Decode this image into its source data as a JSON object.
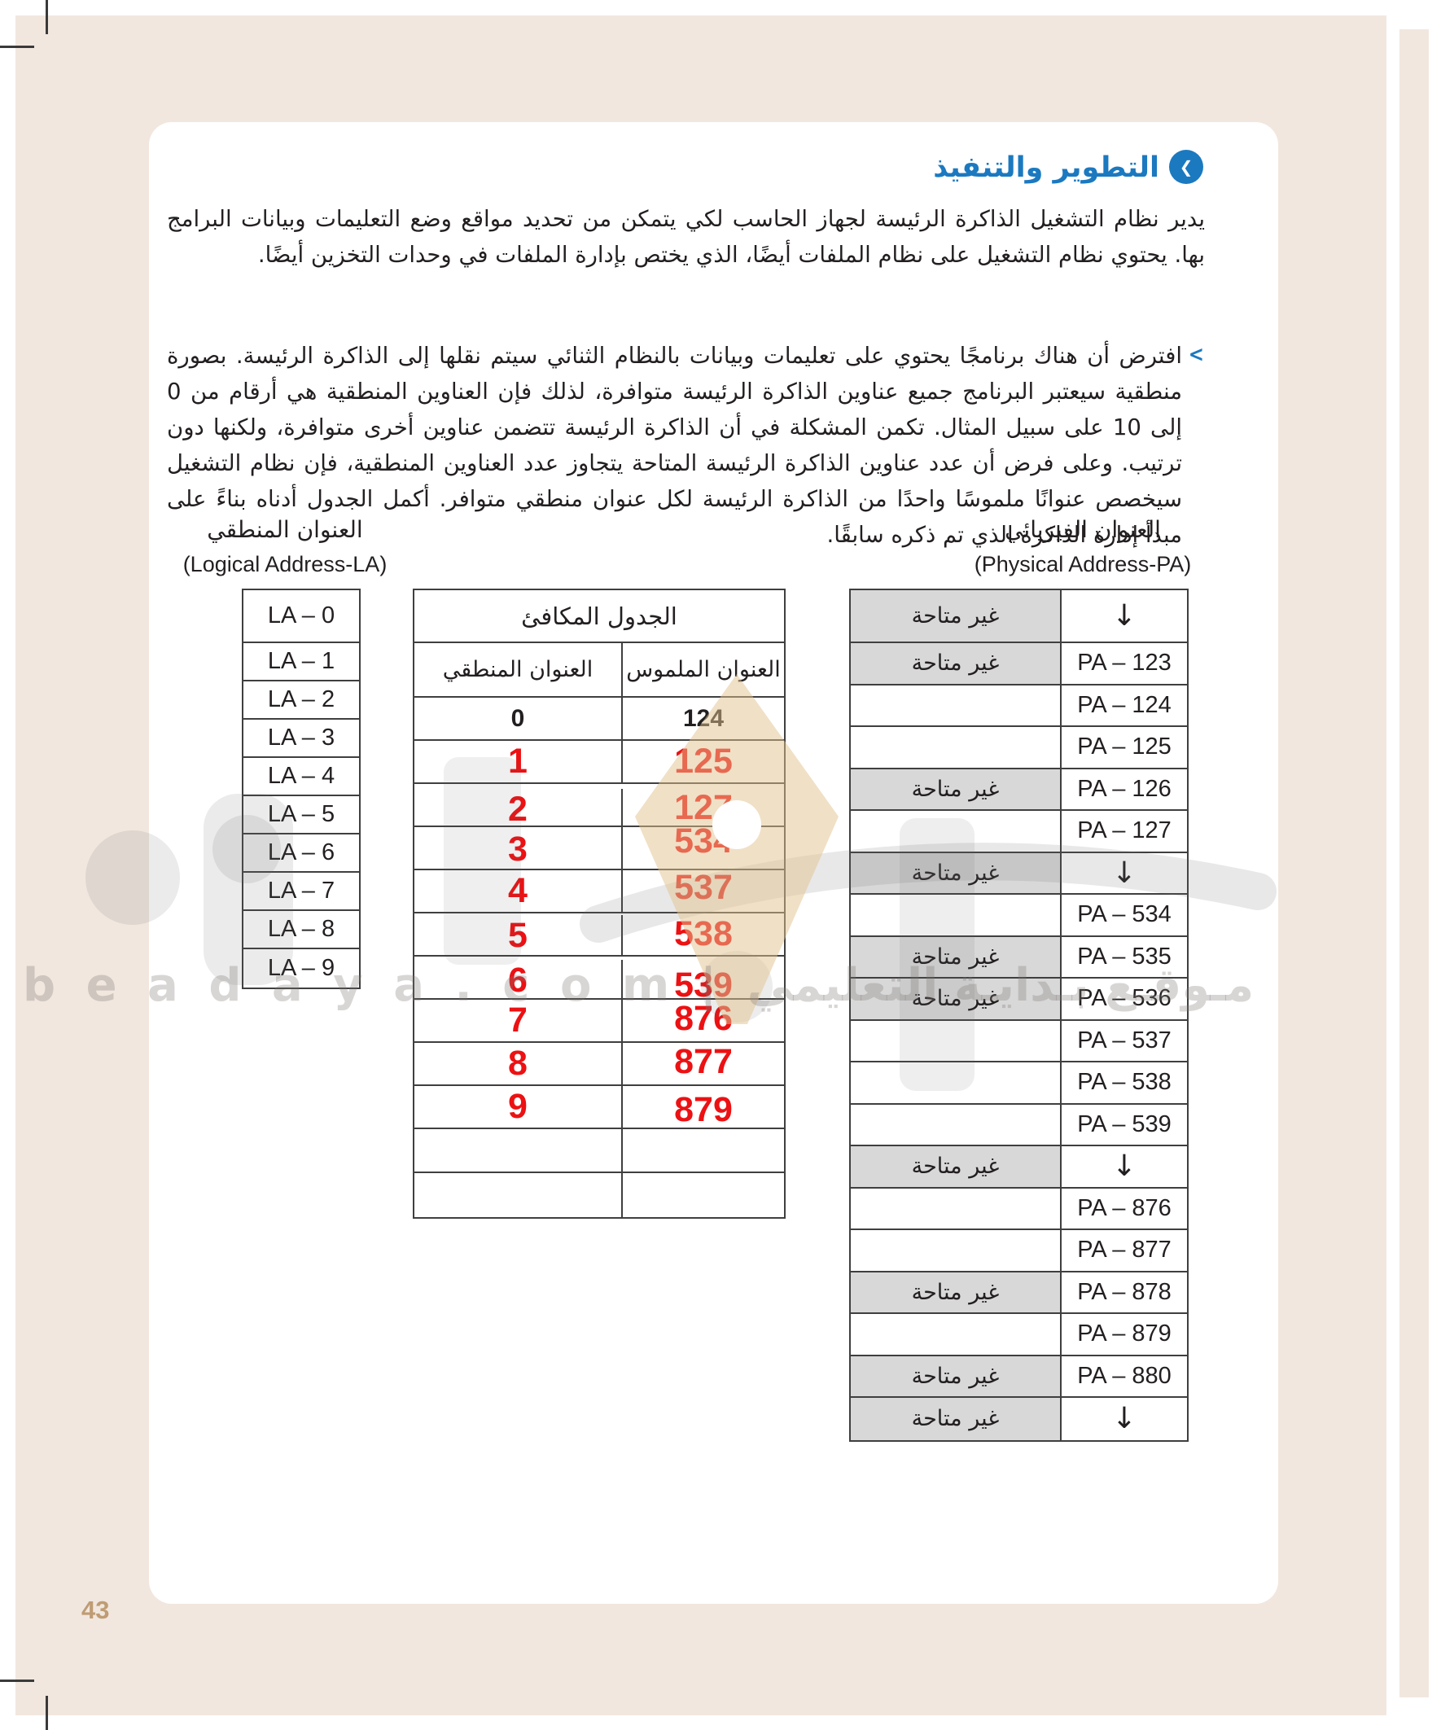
{
  "page": {
    "number": "43",
    "title": "التطوير والتنفيذ",
    "bullet_glyph": "<",
    "paragraph1": "يدير نظام التشغيل الذاكرة الرئيسة لجهاز الحاسب لكي يتمكن من تحديد مواقع وضع التعليمات وبيانات البرامج بها. يحتوي نظام التشغيل على نظام الملفات أيضًا، الذي يختص بإدارة الملفات في وحدات التخزين أيضًا.",
    "bullet_paragraph": "افترض أن هناك برنامجًا يحتوي على تعليمات وبيانات بالنظام الثنائي سيتم نقلها إلى الذاكرة الرئيسة. بصورة منطقية سيعتبر البرنامج جميع عناوين الذاكرة الرئيسة متوافرة، لذلك فإن العناوين المنطقية هي أرقام من 0 إلى 10 على سبيل المثال. تكمن المشكلة في أن الذاكرة الرئيسة تتضمن عناوين أخرى متوافرة، ولكنها دون ترتيب. وعلى فرض أن عدد عناوين الذاكرة الرئيسة المتاحة يتجاوز عدد العناوين المنطقية، فإن نظام التشغيل سيخصص عنوانًا ملموسًا واحدًا من الذاكرة الرئيسة لكل عنوان منطقي متوافر. أكمل الجدول أدناه بناءً على مبدأ إدارة الذاكرة الذي تم ذكره سابقًا."
  },
  "logical": {
    "label_ar": "العنوان المنطقي",
    "label_en": "(Logical Address-LA)",
    "rows": [
      "LA – 0",
      "LA – 1",
      "LA – 2",
      "LA – 3",
      "LA – 4",
      "LA – 5",
      "LA – 6",
      "LA – 7",
      "LA – 8",
      "LA – 9"
    ]
  },
  "equivalence_table": {
    "title": "الجدول المكافئ",
    "col_logical": "العنوان المنطقي",
    "col_tangible": "العنوان الملموس",
    "rows": [
      {
        "logical": "0",
        "tangible": "124",
        "style": "print"
      },
      {
        "logical": "1",
        "tangible": "125",
        "style": "answer"
      },
      {
        "logical": "2",
        "tangible": "127",
        "style": "answer"
      },
      {
        "logical": "3",
        "tangible": "534",
        "style": "answer"
      },
      {
        "logical": "4",
        "tangible": "537",
        "style": "answer"
      },
      {
        "logical": "5",
        "tangible": "538",
        "style": "answer"
      },
      {
        "logical": "6",
        "tangible": "539",
        "style": "answer"
      },
      {
        "logical": "7",
        "tangible": "876",
        "style": "answer"
      },
      {
        "logical": "8",
        "tangible": "877",
        "style": "answer"
      },
      {
        "logical": "9",
        "tangible": "879",
        "style": "answer"
      },
      {
        "logical": "",
        "tangible": "",
        "style": "empty"
      },
      {
        "logical": "",
        "tangible": "",
        "style": "empty"
      }
    ]
  },
  "physical": {
    "label_ar": "العنوان الفيزيائي",
    "label_en": "(Physical Address-PA)",
    "rows": [
      {
        "status": "غير متاحة",
        "address": "↓",
        "shaded": true
      },
      {
        "status": "غير متاحة",
        "address": "PA – 123",
        "shaded": true
      },
      {
        "status": "",
        "address": "PA – 124",
        "shaded": false
      },
      {
        "status": "",
        "address": "PA – 125",
        "shaded": false
      },
      {
        "status": "غير متاحة",
        "address": "PA – 126",
        "shaded": true
      },
      {
        "status": "",
        "address": "PA – 127",
        "shaded": false
      },
      {
        "status": "غير متاحة",
        "address": "↓",
        "shaded": true
      },
      {
        "status": "",
        "address": "PA – 534",
        "shaded": false
      },
      {
        "status": "غير متاحة",
        "address": "PA – 535",
        "shaded": true
      },
      {
        "status": "غير متاحة",
        "address": "PA – 536",
        "shaded": true
      },
      {
        "status": "",
        "address": "PA – 537",
        "shaded": false
      },
      {
        "status": "",
        "address": "PA – 538",
        "shaded": false
      },
      {
        "status": "",
        "address": "PA – 539",
        "shaded": false
      },
      {
        "status": "غير متاحة",
        "address": "↓",
        "shaded": true
      },
      {
        "status": "",
        "address": "PA – 876",
        "shaded": false
      },
      {
        "status": "",
        "address": "PA – 877",
        "shaded": false
      },
      {
        "status": "غير متاحة",
        "address": "PA – 878",
        "shaded": true
      },
      {
        "status": "",
        "address": "PA – 879",
        "shaded": false
      },
      {
        "status": "غير متاحة",
        "address": "PA – 880",
        "shaded": true
      },
      {
        "status": "غير متاحة",
        "address": "↓",
        "shaded": true
      }
    ]
  },
  "watermark": {
    "text": "b e a d a y a . c o m  |  مـوقـع بـدايـة التعليمي"
  },
  "colors": {
    "accent_blue": "#1b79c0",
    "answer_red": "#ec1113",
    "shaded_cell": "#d8d8d8",
    "page_beige": "#f1e7df",
    "page_number_tan": "#bf9c73",
    "border_dark": "#3f3f3f"
  }
}
